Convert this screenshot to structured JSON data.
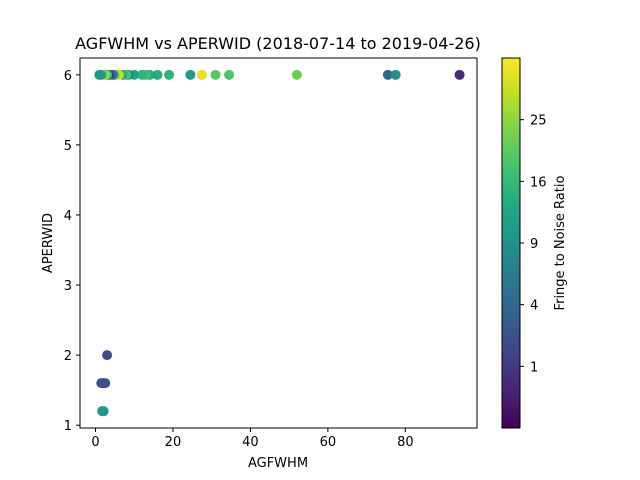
{
  "chart_data": {
    "type": "scatter",
    "title": "AGFWHM vs APERWID (2018-07-14 to 2019-04-26)",
    "xlabel": "AGFWHM",
    "ylabel": "APERWID",
    "xlim": [
      -4,
      98.5
    ],
    "ylim": [
      0.96,
      6.24
    ],
    "xticks": [
      0,
      20,
      40,
      60,
      80
    ],
    "yticks": [
      1,
      2,
      3,
      4,
      5,
      6
    ],
    "grid": false,
    "colorbar": {
      "label": "Fringe to Noise Ratio",
      "scale": "sqrt",
      "colormap": "viridis",
      "min": 0,
      "max": 36,
      "ticks": [
        1,
        4,
        9,
        16,
        25
      ]
    },
    "points": [
      {
        "x": 94,
        "y": 6,
        "c": 0.5
      },
      {
        "x": 75.5,
        "y": 6,
        "c": 4
      },
      {
        "x": 77.5,
        "y": 6,
        "c": 9
      },
      {
        "x": 52,
        "y": 6,
        "c": 22
      },
      {
        "x": 34.5,
        "y": 6,
        "c": 19
      },
      {
        "x": 31,
        "y": 6,
        "c": 20
      },
      {
        "x": 27.5,
        "y": 6,
        "c": 33
      },
      {
        "x": 24.5,
        "y": 6,
        "c": 11
      },
      {
        "x": 19,
        "y": 6,
        "c": 15
      },
      {
        "x": 16,
        "y": 6,
        "c": 14
      },
      {
        "x": 14,
        "y": 6,
        "c": 13
      },
      {
        "x": 13,
        "y": 6,
        "c": 17
      },
      {
        "x": 12,
        "y": 6,
        "c": 15
      },
      {
        "x": 10,
        "y": 6,
        "c": 12
      },
      {
        "x": 8.5,
        "y": 6,
        "c": 6
      },
      {
        "x": 8,
        "y": 6,
        "c": 18
      },
      {
        "x": 7,
        "y": 6,
        "c": 14
      },
      {
        "x": 6,
        "y": 6,
        "c": 30
      },
      {
        "x": 5,
        "y": 6,
        "c": 22
      },
      {
        "x": 4.5,
        "y": 6,
        "c": 5
      },
      {
        "x": 3.5,
        "y": 6,
        "c": 1
      },
      {
        "x": 3,
        "y": 6,
        "c": 16
      },
      {
        "x": 2.5,
        "y": 6,
        "c": 25
      },
      {
        "x": 1.5,
        "y": 6,
        "c": 12
      },
      {
        "x": 1,
        "y": 6,
        "c": 10
      },
      {
        "x": 3,
        "y": 2,
        "c": 2
      },
      {
        "x": 1.5,
        "y": 1.6,
        "c": 2
      },
      {
        "x": 2,
        "y": 1.6,
        "c": 3
      },
      {
        "x": 2.5,
        "y": 1.6,
        "c": 2
      },
      {
        "x": 1.7,
        "y": 1.2,
        "c": 11
      },
      {
        "x": 2.1,
        "y": 1.2,
        "c": 10
      }
    ]
  }
}
